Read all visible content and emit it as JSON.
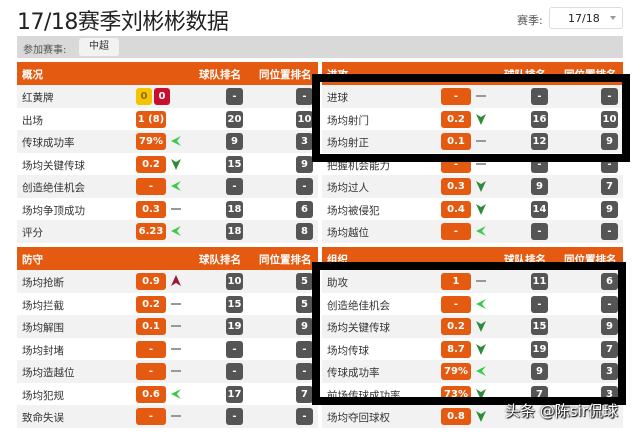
{
  "header": {
    "title": "17/18赛季刘彬彬数据",
    "season_label": "赛季:",
    "season_value": "17/18"
  },
  "filter": {
    "label": "参加赛事:",
    "competition": "中超"
  },
  "colors": {
    "accent": "#e35a10",
    "yellow_card": "#f5c400",
    "red_card": "#c8102e",
    "rank_badge": "#555555",
    "trend_up_green": "#3cc94a",
    "trend_down_green": "#2e8b3a",
    "trend_up_red": "#9b1b30"
  },
  "panels": [
    {
      "title": "概况",
      "col_team": "球队排名",
      "col_pos": "同位置排名",
      "rows": [
        {
          "name": "红黄牌",
          "cards": [
            "0",
            "0"
          ],
          "team": "-",
          "pos": "-"
        },
        {
          "name": "出场",
          "value": "1 (8)",
          "team": "20",
          "pos": "10"
        },
        {
          "name": "传球成功率",
          "value": "79%",
          "trend": "left-green-arrow",
          "team": "9",
          "pos": "3"
        },
        {
          "name": "场均关键传球",
          "value": "0.2",
          "trend": "down-green-arrow",
          "team": "15",
          "pos": "9"
        },
        {
          "name": "创造绝佳机会",
          "value": "-",
          "trend": "left-green-arrow",
          "team": "-",
          "pos": "-"
        },
        {
          "name": "场均争顶成功",
          "value": "0.3",
          "trend": "dash",
          "team": "18",
          "pos": "6"
        },
        {
          "name": "评分",
          "value": "6.23",
          "trend": "left-green-arrow",
          "team": "18",
          "pos": "8"
        }
      ]
    },
    {
      "title": "进攻",
      "col_team": "球队排名",
      "col_pos": "同位置排名",
      "rows": [
        {
          "name": "进球",
          "value": "-",
          "trend": "dash",
          "team": "-",
          "pos": "-"
        },
        {
          "name": "场均射门",
          "value": "0.2",
          "trend": "down-green-arrow",
          "team": "16",
          "pos": "10"
        },
        {
          "name": "场均射正",
          "value": "0.1",
          "trend": "dash",
          "team": "12",
          "pos": "9"
        },
        {
          "name": "把握机会能力",
          "value": "-",
          "trend": "dash",
          "team": "-",
          "pos": "-"
        },
        {
          "name": "场均过人",
          "value": "0.3",
          "trend": "down-green-arrow",
          "team": "9",
          "pos": "7"
        },
        {
          "name": "场均被侵犯",
          "value": "0.4",
          "trend": "down-green-arrow",
          "team": "14",
          "pos": "9"
        },
        {
          "name": "场均越位",
          "value": "-",
          "trend": "left-green-arrow",
          "team": "-",
          "pos": "-"
        }
      ]
    },
    {
      "title": "防守",
      "col_team": "球队排名",
      "col_pos": "同位置排名",
      "rows": [
        {
          "name": "场均抢断",
          "value": "0.9",
          "trend": "up-red-arrow",
          "team": "10",
          "pos": "5"
        },
        {
          "name": "场均拦截",
          "value": "0.2",
          "trend": "dash",
          "team": "15",
          "pos": "5"
        },
        {
          "name": "场均解围",
          "value": "0.1",
          "trend": "dash",
          "team": "19",
          "pos": "9"
        },
        {
          "name": "场均封堵",
          "value": "-",
          "trend": "dash",
          "team": "-",
          "pos": "-"
        },
        {
          "name": "场均造越位",
          "value": "-",
          "trend": "dash",
          "team": "-",
          "pos": "-"
        },
        {
          "name": "场均犯规",
          "value": "0.6",
          "trend": "left-green-arrow",
          "team": "17",
          "pos": "7"
        },
        {
          "name": "致命失误",
          "value": "-",
          "trend": "dash",
          "team": "-",
          "pos": "-"
        }
      ]
    },
    {
      "title": "组织",
      "col_team": "球队排名",
      "col_pos": "同位置排名",
      "rows": [
        {
          "name": "助攻",
          "value": "1",
          "trend": "dash",
          "team": "11",
          "pos": "6"
        },
        {
          "name": "创造绝佳机会",
          "value": "-",
          "trend": "left-green-arrow",
          "team": "-",
          "pos": "-"
        },
        {
          "name": "场均关键传球",
          "value": "0.2",
          "trend": "down-green-arrow",
          "team": "15",
          "pos": "9"
        },
        {
          "name": "场均传球",
          "value": "8.7",
          "trend": "down-green-arrow",
          "team": "19",
          "pos": "7"
        },
        {
          "name": "传球成功率",
          "value": "79%",
          "trend": "left-green-arrow",
          "team": "9",
          "pos": "3"
        },
        {
          "name": "前场传球成功率",
          "value": "73%",
          "trend": "down-green-arrow",
          "team": "7",
          "pos": "3"
        },
        {
          "name": "场均夺回球权",
          "value": "0.8",
          "trend": "down-green-arrow",
          "team": "",
          "pos": ""
        }
      ]
    }
  ],
  "watermark": "头条 @陈sir侃球"
}
